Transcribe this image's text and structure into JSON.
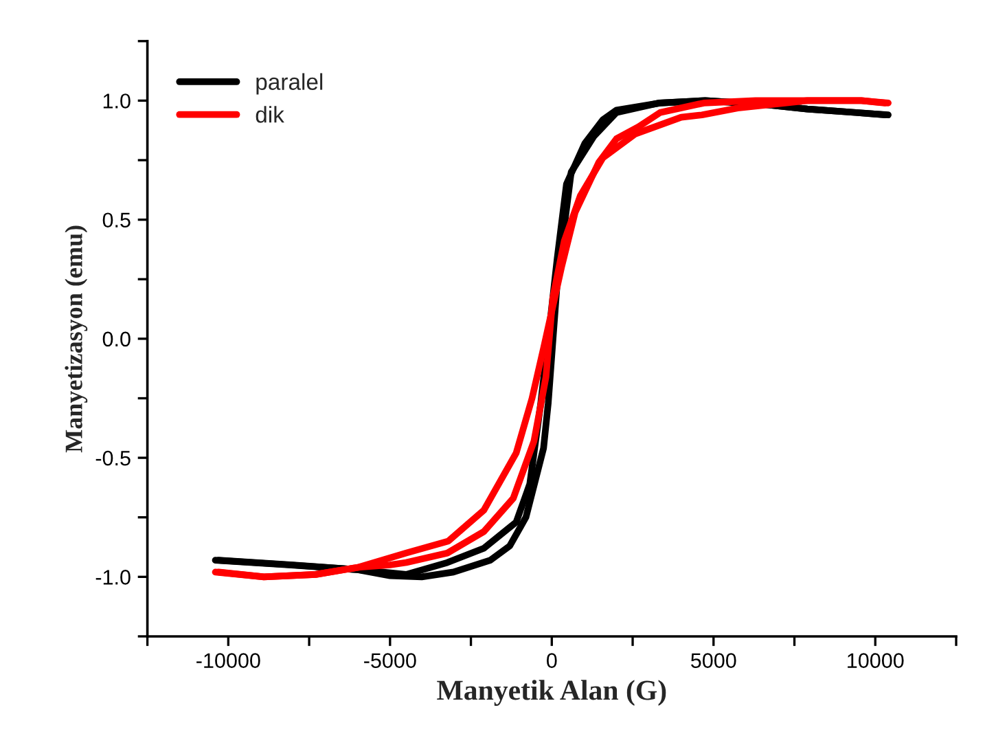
{
  "chart_data": {
    "type": "line",
    "xlabel": "Manyetik Alan (G)",
    "ylabel": "Manyetizasyon (emu)",
    "series": [
      {
        "name": "paralel",
        "color": "#000000",
        "x": [
          10400,
          9400,
          7900,
          6500,
          4740,
          3350,
          2000,
          1580,
          1020,
          455,
          170,
          -110,
          -340,
          -680,
          -1100,
          -2100,
          -3230,
          -4500,
          -6000,
          -8130,
          -10400
        ],
        "values": [
          0.94,
          0.95,
          0.965,
          0.985,
          1.0,
          0.99,
          0.96,
          0.92,
          0.82,
          0.65,
          0.34,
          0.0,
          -0.27,
          -0.61,
          -0.77,
          -0.88,
          -0.94,
          -0.99,
          -0.97,
          -0.95,
          -0.93
        ]
      },
      {
        "color": "#000000",
        "x": [
          -10300,
          -8000,
          -6000,
          -5000,
          -4020,
          -3040,
          -1900,
          -1300,
          -800,
          -255,
          -110,
          170,
          600,
          1300,
          2000,
          3300,
          4740,
          6500,
          7900,
          9400,
          10300
        ],
        "values": [
          -0.93,
          -0.95,
          -0.97,
          -0.995,
          -1.0,
          -0.98,
          -0.93,
          -0.87,
          -0.75,
          -0.46,
          -0.27,
          0.24,
          0.7,
          0.85,
          0.95,
          0.99,
          1.0,
          0.985,
          0.965,
          0.95,
          0.94
        ]
      },
      {
        "name": "dik",
        "color": "#ff0000",
        "x": [
          10400,
          9570,
          7900,
          6300,
          4700,
          3350,
          2680,
          2000,
          1450,
          720,
          300,
          -255,
          -610,
          -1100,
          -2100,
          -3200,
          -4500,
          -5980,
          -7300,
          -8900,
          -10400
        ],
        "values": [
          0.99,
          1.0,
          1.0,
          1.0,
          0.99,
          0.95,
          0.89,
          0.84,
          0.74,
          0.53,
          0.3,
          -0.04,
          -0.25,
          -0.48,
          -0.72,
          -0.85,
          -0.9,
          -0.96,
          -0.99,
          -1.0,
          -0.98
        ]
      },
      {
        "color": "#ff0000",
        "x": [
          -10300,
          -8900,
          -7300,
          -5980,
          -5000,
          -4500,
          -3230,
          -2100,
          -1190,
          -550,
          -180,
          30,
          385,
          880,
          1580,
          2580,
          4000,
          4640,
          5800,
          7900,
          9570,
          10300
        ],
        "values": [
          -0.98,
          -1.0,
          -0.99,
          -0.96,
          -0.95,
          -0.94,
          -0.9,
          -0.81,
          -0.67,
          -0.43,
          -0.16,
          0.17,
          0.41,
          0.6,
          0.76,
          0.86,
          0.93,
          0.94,
          0.97,
          1.0,
          1.0,
          0.99
        ]
      }
    ],
    "xlim": [
      -12500,
      12500
    ],
    "xticks": [
      {
        "value": -12500,
        "label": null
      },
      -10000,
      {
        "value": -7500,
        "label": null
      },
      -5000,
      {
        "value": -2500,
        "label": null
      },
      0,
      {
        "value": 2500,
        "label": null
      },
      5000,
      {
        "value": 7500,
        "label": null
      },
      10000,
      {
        "value": 12500,
        "label": null
      }
    ],
    "ylim": [
      -1.25,
      1.25
    ],
    "yticks": [
      {
        "value": -1.25,
        "label": null
      },
      {
        "value": -1.0,
        "label": "-1.0"
      },
      {
        "value": -0.75,
        "label": null
      },
      {
        "value": -0.5,
        "label": "-0.5"
      },
      {
        "value": -0.25,
        "label": null
      },
      {
        "value": 0,
        "label": "0.0"
      },
      {
        "value": 0.25,
        "label": null
      },
      {
        "value": 0.5,
        "label": "0.5"
      },
      {
        "value": 0.75,
        "label": null
      },
      {
        "value": 1.0,
        "label": "1.0"
      },
      {
        "value": 1.25,
        "label": null
      }
    ],
    "grid": false,
    "legend": "top left",
    "marker": "none",
    "line_style": "solid"
  }
}
